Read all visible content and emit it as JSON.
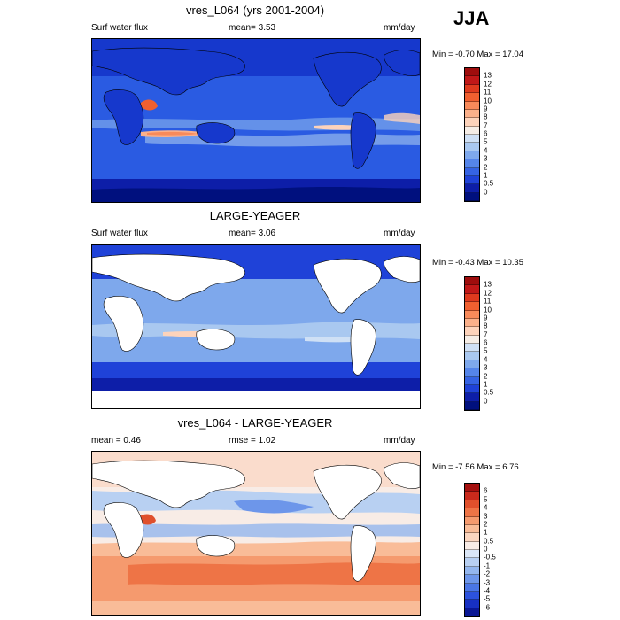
{
  "season": "JJA",
  "panels": [
    {
      "title": "vres_L064 (yrs 2001-2004)",
      "left_label": "Surf water flux",
      "center_label": "mean=   3.53",
      "units": "mm/day",
      "minmax": "Min =  -0.70 Max =  17.04",
      "levels": [
        "13",
        "12",
        "11",
        "10",
        "9",
        "8",
        "7",
        "6",
        "5",
        "4",
        "3",
        "2",
        "1",
        "0.5",
        "0"
      ],
      "colors": [
        "#9e0d0d",
        "#c01818",
        "#de3a1e",
        "#f06030",
        "#f88a5a",
        "#fbb08a",
        "#fdd3bb",
        "#f5ede6",
        "#cfe0f5",
        "#a9c8f0",
        "#7ea8ec",
        "#5585ea",
        "#3563e4",
        "#1f42d8",
        "#0d1ea8",
        "#00107e"
      ]
    },
    {
      "title": "LARGE-YEAGER",
      "left_label": "Surf water flux",
      "center_label": "mean=   3.06",
      "units": "mm/day",
      "minmax": "Min =  -0.43 Max =  10.35",
      "levels": [
        "13",
        "12",
        "11",
        "10",
        "9",
        "8",
        "7",
        "6",
        "5",
        "4",
        "3",
        "2",
        "1",
        "0.5",
        "0"
      ],
      "colors": [
        "#9e0d0d",
        "#c01818",
        "#de3a1e",
        "#f06030",
        "#f88a5a",
        "#fbb08a",
        "#fdd3bb",
        "#f5ede6",
        "#cfe0f5",
        "#a9c8f0",
        "#7ea8ec",
        "#5585ea",
        "#3563e4",
        "#1f42d8",
        "#0d1ea8",
        "#00107e"
      ]
    },
    {
      "title": "vres_L064 - LARGE-YEAGER",
      "left_label": "mean =   0.46",
      "center_label": "rmse =   1.02",
      "units": "mm/day",
      "minmax": "Min =  -7.56 Max =   6.76",
      "levels": [
        "6",
        "5",
        "4",
        "3",
        "2",
        "1",
        "0.5",
        "0",
        "-0.5",
        "-1",
        "-2",
        "-3",
        "-4",
        "-5",
        "-6"
      ],
      "colors": [
        "#a5100f",
        "#c92a1c",
        "#e0502c",
        "#ee7446",
        "#f59a6e",
        "#f9bc98",
        "#fbd6c0",
        "#f8ece6",
        "#dbe7f7",
        "#b8d0f2",
        "#93b6ee",
        "#6d96ea",
        "#4a76e6",
        "#2c52dc",
        "#1730c2",
        "#0a1794"
      ]
    }
  ]
}
